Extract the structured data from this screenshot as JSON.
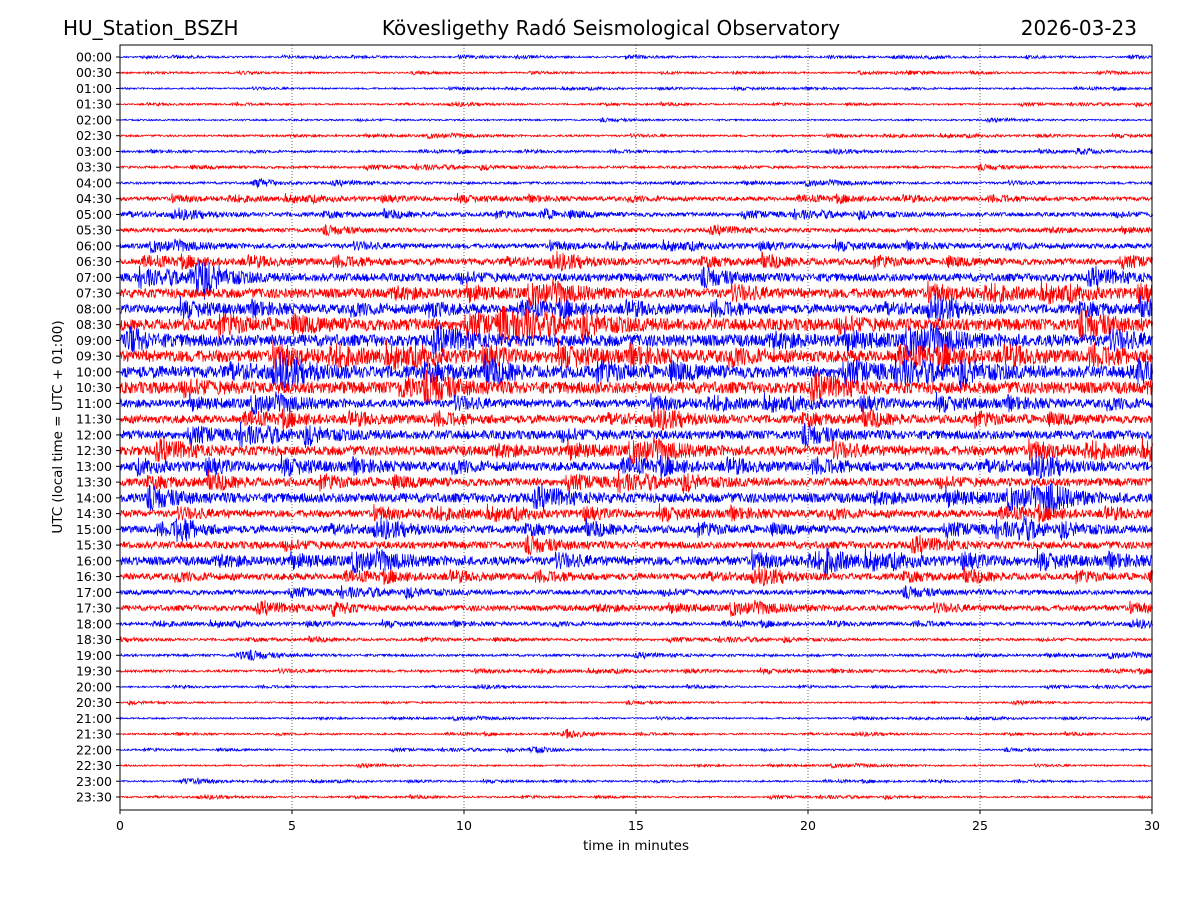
{
  "header": {
    "station": "HU_Station_BSZH",
    "observatory": "Kövesligethy Radó Seismological Observatory",
    "date": "2026-03-23"
  },
  "chart_data": {
    "type": "line",
    "title": "Kövesligethy Radó Seismological Observatory",
    "xlabel": "time in minutes",
    "ylabel": "UTC (local time = UTC + 01:00)",
    "xlim": [
      0,
      30
    ],
    "xticks": [
      "0",
      "5",
      "10",
      "15",
      "20",
      "25",
      "30"
    ],
    "grid": "vertical dotted at 5-minute intervals",
    "colors": [
      "#0000ff",
      "#ff0000"
    ],
    "rows": [
      "00:00",
      "00:30",
      "01:00",
      "01:30",
      "02:00",
      "02:30",
      "03:00",
      "03:30",
      "04:00",
      "04:30",
      "05:00",
      "05:30",
      "06:00",
      "06:30",
      "07:00",
      "07:30",
      "08:00",
      "08:30",
      "09:00",
      "09:30",
      "10:00",
      "10:30",
      "11:00",
      "11:30",
      "12:00",
      "12:30",
      "13:00",
      "13:30",
      "14:00",
      "14:30",
      "15:00",
      "15:30",
      "16:00",
      "16:30",
      "17:00",
      "17:30",
      "18:00",
      "18:30",
      "19:00",
      "19:30",
      "20:00",
      "20:30",
      "21:00",
      "21:30",
      "22:00",
      "22:30",
      "23:00",
      "23:30"
    ],
    "noise_level": [
      0.1,
      0.1,
      0.1,
      0.1,
      0.1,
      0.12,
      0.12,
      0.15,
      0.15,
      0.25,
      0.25,
      0.25,
      0.3,
      0.4,
      0.5,
      0.6,
      0.55,
      0.75,
      0.75,
      0.75,
      0.75,
      0.75,
      0.5,
      0.5,
      0.55,
      0.6,
      0.55,
      0.5,
      0.6,
      0.45,
      0.45,
      0.45,
      0.55,
      0.4,
      0.3,
      0.35,
      0.2,
      0.15,
      0.15,
      0.15,
      0.1,
      0.1,
      0.1,
      0.1,
      0.1,
      0.1,
      0.1,
      0.1
    ],
    "events": [
      {
        "row": "03:00",
        "minute": 27.9,
        "amplitude": 0.5
      },
      {
        "row": "04:00",
        "minute": 4.0,
        "amplitude": 0.5
      },
      {
        "row": "05:00",
        "minute": 12.3,
        "amplitude": 0.5
      },
      {
        "row": "07:00",
        "minute": 2.2,
        "amplitude": 2.2
      },
      {
        "row": "08:00",
        "minute": 9.0,
        "amplitude": 0.9
      },
      {
        "row": "08:30",
        "minute": 11.1,
        "amplitude": 1.5
      },
      {
        "row": "09:00",
        "minute": 0.3,
        "amplitude": 1.2
      },
      {
        "row": "10:00",
        "minute": 29.5,
        "amplitude": 1.2
      },
      {
        "row": "10:30",
        "minute": 8.2,
        "amplitude": 1.0
      },
      {
        "row": "14:00",
        "minute": 27.0,
        "amplitude": 1.2
      },
      {
        "row": "15:00",
        "minute": 1.7,
        "amplitude": 1.2
      },
      {
        "row": "15:00",
        "minute": 26.2,
        "amplitude": 0.8
      },
      {
        "row": "16:00",
        "minute": 20.5,
        "amplitude": 1.0
      },
      {
        "row": "17:30",
        "minute": 6.2,
        "amplitude": 0.8
      },
      {
        "row": "19:00",
        "minute": 3.5,
        "amplitude": 0.5
      },
      {
        "row": "21:30",
        "minute": 13.0,
        "amplitude": 0.5
      },
      {
        "row": "22:00",
        "minute": 12.0,
        "amplitude": 0.4
      },
      {
        "row": "23:00",
        "minute": 1.9,
        "amplitude": 0.4
      }
    ]
  }
}
